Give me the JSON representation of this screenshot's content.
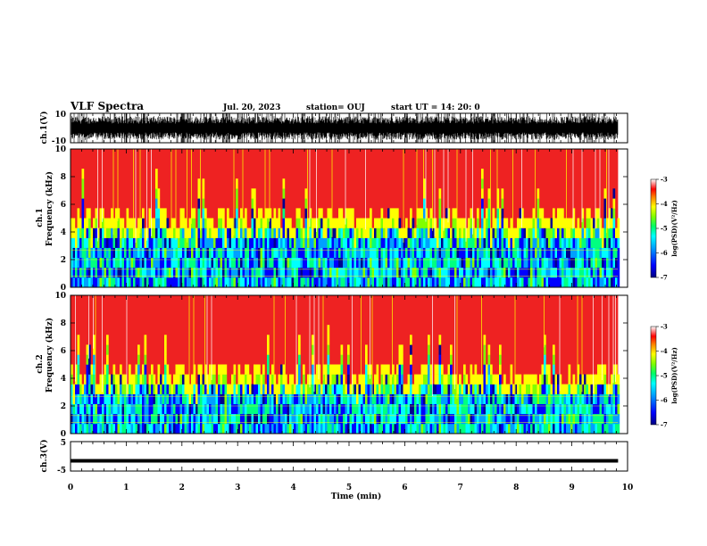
{
  "header": {
    "title": "VLF Spectra",
    "date": "Jul. 20, 2023",
    "station": "station= OUJ",
    "start": "start  UT =   14: 20: 0"
  },
  "colors": {
    "colormap": [
      "#000090",
      "#0000ff",
      "#00a0ff",
      "#00ffff",
      "#00ff80",
      "#80ff00",
      "#ffff00",
      "#ff8000",
      "#ff0000",
      "#ffffff"
    ],
    "trace": "#000000",
    "spectrogram_high": "#ee2222"
  },
  "chart_data": [
    {
      "id": "ch1-waveform",
      "type": "line",
      "ylabel": "ch.1(V)",
      "ylim": [
        -10,
        10
      ],
      "yticks": [
        "10",
        "-10"
      ],
      "description_series": [
        {
          "values_range": [
            -10,
            10
          ]
        }
      ]
    },
    {
      "id": "ch1-spectrogram",
      "type": "heatmap",
      "ylabel_line1": "ch.1",
      "ylabel_line2": "Frequency (kHz)",
      "ylim": [
        0,
        10
      ],
      "yticks": [
        "0",
        "2",
        "4",
        "6",
        "8",
        "10"
      ],
      "colorbar": {
        "label": "log(PSD)(V²/Hz)",
        "range": [
          -7,
          -3
        ],
        "ticks": [
          "-3",
          "-4",
          "-5",
          "-6",
          "-7"
        ]
      }
    },
    {
      "id": "ch2-spectrogram",
      "type": "heatmap",
      "ylabel_line1": "ch.2",
      "ylabel_line2": "Frequency (kHz)",
      "ylim": [
        0,
        10
      ],
      "yticks": [
        "0",
        "2",
        "4",
        "6",
        "8",
        "10"
      ],
      "colorbar": {
        "label": "log(PSD)(V²/Hz)",
        "range": [
          -7,
          -3
        ],
        "ticks": [
          "-3",
          "-4",
          "-5",
          "-6",
          "-7"
        ]
      }
    },
    {
      "id": "ch3-waveform",
      "type": "line",
      "ylabel": "ch.3(V)",
      "ylim": [
        -5,
        5
      ],
      "yticks": [
        "5",
        "-5"
      ],
      "x": [
        0,
        9.83
      ],
      "y": [
        -1.5,
        -1.5
      ]
    }
  ],
  "xaxis": {
    "label": "Time (min)",
    "range": [
      0,
      10
    ],
    "ticks": [
      "0",
      "1",
      "2",
      "3",
      "4",
      "5",
      "6",
      "7",
      "8",
      "9",
      "10"
    ],
    "data_end": 9.83
  }
}
